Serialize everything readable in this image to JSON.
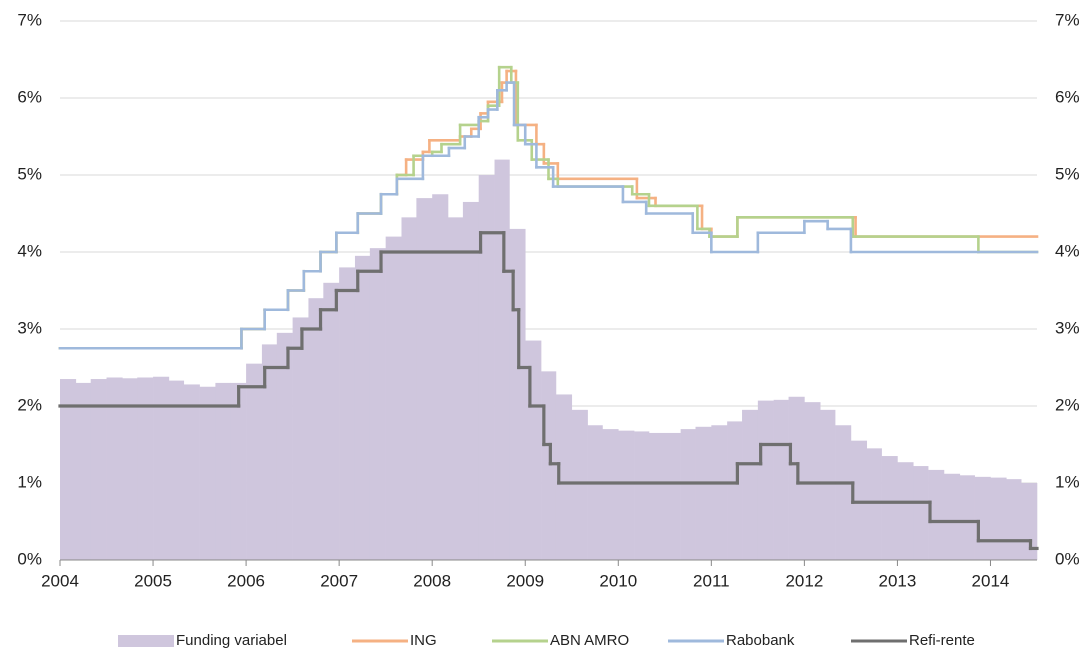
{
  "chart_data": {
    "type": "combo",
    "xlim": [
      2004,
      2014.5
    ],
    "xticks": [
      2004,
      2005,
      2006,
      2007,
      2008,
      2009,
      2010,
      2011,
      2012,
      2013,
      2014
    ],
    "ylim": [
      0,
      7
    ],
    "yticks": [
      {
        "value": 0,
        "label": "0%"
      },
      {
        "value": 1,
        "label": "1%"
      },
      {
        "value": 2,
        "label": "2%"
      },
      {
        "value": 3,
        "label": "3%"
      },
      {
        "value": 4,
        "label": "4%"
      },
      {
        "value": 5,
        "label": "5%"
      },
      {
        "value": 6,
        "label": "6%"
      },
      {
        "value": 7,
        "label": "7%"
      }
    ],
    "y2lim": [
      0,
      7
    ],
    "y2ticks": [
      {
        "value": 0,
        "label": "0%"
      },
      {
        "value": 1,
        "label": "1%"
      },
      {
        "value": 2,
        "label": "2%"
      },
      {
        "value": 3,
        "label": "3%"
      },
      {
        "value": 4,
        "label": "4%"
      },
      {
        "value": 5,
        "label": "5%"
      },
      {
        "value": 6,
        "label": "6%"
      },
      {
        "value": 7,
        "label": "7%"
      }
    ],
    "grid": true,
    "legend": "bottom",
    "series": [
      {
        "name": "Funding variabel",
        "type": "bar",
        "color": "#cfc6dd",
        "x": [
          2004.0,
          2004.17,
          2004.33,
          2004.5,
          2004.67,
          2004.83,
          2005.0,
          2005.17,
          2005.33,
          2005.5,
          2005.67,
          2005.83,
          2006.0,
          2006.17,
          2006.33,
          2006.5,
          2006.67,
          2006.83,
          2007.0,
          2007.17,
          2007.33,
          2007.5,
          2007.67,
          2007.83,
          2008.0,
          2008.17,
          2008.33,
          2008.5,
          2008.67,
          2008.83,
          2009.0,
          2009.17,
          2009.33,
          2009.5,
          2009.67,
          2009.83,
          2010.0,
          2010.17,
          2010.33,
          2010.5,
          2010.67,
          2010.83,
          2011.0,
          2011.17,
          2011.33,
          2011.5,
          2011.67,
          2011.83,
          2012.0,
          2012.17,
          2012.33,
          2012.5,
          2012.67,
          2012.83,
          2013.0,
          2013.17,
          2013.33,
          2013.5,
          2013.67,
          2013.83,
          2014.0,
          2014.17,
          2014.33
        ],
        "values": [
          2.35,
          2.3,
          2.35,
          2.37,
          2.36,
          2.37,
          2.38,
          2.33,
          2.28,
          2.25,
          2.3,
          2.3,
          2.55,
          2.8,
          2.95,
          3.15,
          3.4,
          3.6,
          3.8,
          3.95,
          4.05,
          4.2,
          4.45,
          4.7,
          4.75,
          4.45,
          4.65,
          5.0,
          5.2,
          4.3,
          2.85,
          2.45,
          2.15,
          1.95,
          1.75,
          1.7,
          1.68,
          1.67,
          1.65,
          1.65,
          1.7,
          1.73,
          1.75,
          1.8,
          1.95,
          2.07,
          2.08,
          2.12,
          2.05,
          1.95,
          1.75,
          1.55,
          1.45,
          1.35,
          1.27,
          1.22,
          1.17,
          1.12,
          1.1,
          1.08,
          1.07,
          1.05,
          1.0
        ]
      },
      {
        "name": "ING",
        "type": "step",
        "color": "#f5b183",
        "x": [
          2004.0,
          2005.95,
          2006.2,
          2006.45,
          2006.62,
          2006.8,
          2006.97,
          2007.2,
          2007.45,
          2007.62,
          2007.72,
          2007.9,
          2007.97,
          2008.3,
          2008.42,
          2008.52,
          2008.6,
          2008.75,
          2008.8,
          2008.9,
          2009.12,
          2009.2,
          2009.35,
          2010.2,
          2010.4,
          2010.9,
          2011.0,
          2011.28,
          2012.55
        ],
        "values": [
          2.75,
          3.0,
          3.25,
          3.5,
          3.75,
          4.0,
          4.25,
          4.5,
          4.75,
          5.0,
          5.2,
          5.3,
          5.45,
          5.5,
          5.6,
          5.8,
          5.95,
          6.2,
          6.35,
          5.65,
          5.4,
          5.15,
          4.95,
          4.7,
          4.6,
          4.3,
          4.2,
          4.45,
          4.2
        ]
      },
      {
        "name": "ABN AMRO",
        "type": "step",
        "color": "#b5d28d",
        "x": [
          2004.0,
          2005.95,
          2006.2,
          2006.45,
          2006.62,
          2006.8,
          2006.97,
          2007.2,
          2007.45,
          2007.62,
          2007.8,
          2008.0,
          2008.1,
          2008.3,
          2008.5,
          2008.6,
          2008.72,
          2008.85,
          2008.92,
          2009.07,
          2009.25,
          2009.35,
          2010.15,
          2010.33,
          2010.85,
          2010.98,
          2011.28,
          2012.52,
          2013.87
        ],
        "values": [
          2.75,
          3.0,
          3.25,
          3.5,
          3.75,
          4.0,
          4.25,
          4.5,
          4.75,
          5.0,
          5.25,
          5.3,
          5.4,
          5.65,
          5.7,
          5.9,
          6.4,
          6.2,
          5.45,
          5.2,
          4.95,
          4.85,
          4.75,
          4.6,
          4.3,
          4.2,
          4.45,
          4.2,
          4.0
        ]
      },
      {
        "name": "Rabobank",
        "type": "step",
        "color": "#9fb9dc",
        "x": [
          2004.0,
          2005.95,
          2006.2,
          2006.45,
          2006.62,
          2006.8,
          2006.97,
          2007.2,
          2007.45,
          2007.62,
          2007.9,
          2008.18,
          2008.35,
          2008.5,
          2008.6,
          2008.7,
          2008.8,
          2008.88,
          2009.0,
          2009.12,
          2009.3,
          2010.05,
          2010.3,
          2010.8,
          2011.0,
          2011.5,
          2012.0,
          2012.25,
          2012.5
        ],
        "values": [
          2.75,
          3.0,
          3.25,
          3.5,
          3.75,
          4.0,
          4.25,
          4.5,
          4.75,
          4.95,
          5.25,
          5.35,
          5.5,
          5.75,
          5.85,
          6.1,
          6.2,
          5.65,
          5.4,
          5.1,
          4.85,
          4.65,
          4.5,
          4.25,
          4.0,
          4.25,
          4.4,
          4.3,
          4.0
        ]
      },
      {
        "name": "Refi-rente",
        "type": "step",
        "color": "#6f6f6f",
        "x": [
          2004.0,
          2005.92,
          2006.2,
          2006.45,
          2006.6,
          2006.8,
          2006.97,
          2007.2,
          2007.45,
          2008.52,
          2008.77,
          2008.87,
          2008.93,
          2009.05,
          2009.2,
          2009.27,
          2009.36,
          2011.28,
          2011.53,
          2011.85,
          2011.93,
          2012.52,
          2013.35,
          2013.87,
          2014.43
        ],
        "values": [
          2.0,
          2.25,
          2.5,
          2.75,
          3.0,
          3.25,
          3.5,
          3.75,
          4.0,
          4.25,
          3.75,
          3.25,
          2.5,
          2.0,
          1.5,
          1.25,
          1.0,
          1.25,
          1.5,
          1.25,
          1.0,
          0.75,
          0.5,
          0.25,
          0.15
        ]
      }
    ]
  }
}
